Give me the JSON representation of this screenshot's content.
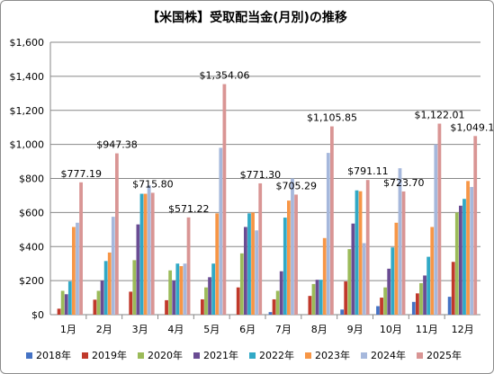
{
  "chart_data": {
    "type": "bar",
    "title": "【米国株】受取配当金(月別)の推移",
    "xlabel": "",
    "ylabel": "",
    "ylim": [
      0,
      1600
    ],
    "yticks": [
      "$0",
      "$200",
      "$400",
      "$600",
      "$800",
      "$1,000",
      "$1,200",
      "$1,400",
      "$1,600"
    ],
    "grid": true,
    "legend": "bottom",
    "categories": [
      "1月",
      "2月",
      "3月",
      "4月",
      "5月",
      "6月",
      "7月",
      "8月",
      "9月",
      "10月",
      "11月",
      "12月"
    ],
    "series": [
      {
        "name": "2018年",
        "color": "#4472c4",
        "values": [
          0,
          0,
          0,
          0,
          0,
          0,
          15,
          0,
          30,
          50,
          75,
          105
        ]
      },
      {
        "name": "2019年",
        "color": "#c0392b",
        "values": [
          35,
          88,
          135,
          85,
          90,
          160,
          90,
          110,
          195,
          100,
          125,
          310
        ]
      },
      {
        "name": "2020年",
        "color": "#9bbb59",
        "values": [
          140,
          140,
          320,
          260,
          160,
          360,
          140,
          180,
          385,
          160,
          185,
          600
        ]
      },
      {
        "name": "2021年",
        "color": "#6a4c93",
        "values": [
          120,
          200,
          530,
          200,
          220,
          515,
          255,
          205,
          535,
          270,
          230,
          640
        ]
      },
      {
        "name": "2022年",
        "color": "#31a9c6",
        "values": [
          195,
          315,
          710,
          300,
          300,
          595,
          570,
          205,
          730,
          395,
          340,
          680
        ]
      },
      {
        "name": "2023年",
        "color": "#f79646",
        "values": [
          515,
          365,
          710,
          285,
          595,
          600,
          670,
          450,
          725,
          540,
          515,
          785
        ]
      },
      {
        "name": "2024年",
        "color": "#a6b8dc",
        "values": [
          540,
          575,
          760,
          300,
          980,
          495,
          800,
          950,
          420,
          860,
          1000,
          750
        ]
      },
      {
        "name": "2025年",
        "color": "#d99594",
        "values": [
          777.19,
          947.38,
          715.8,
          571.22,
          1354.06,
          771.3,
          705.29,
          1105.85,
          791.11,
          723.7,
          1122.01,
          1049.17
        ]
      }
    ],
    "data_labels": [
      "$777.19",
      "$947.38",
      "$715.80",
      "$571.22",
      "$1,354.06",
      "$771.30",
      "$705.29",
      "$1,105.85",
      "$791.11",
      "$723.70",
      "$1,122.01",
      "$1,049.17"
    ]
  }
}
